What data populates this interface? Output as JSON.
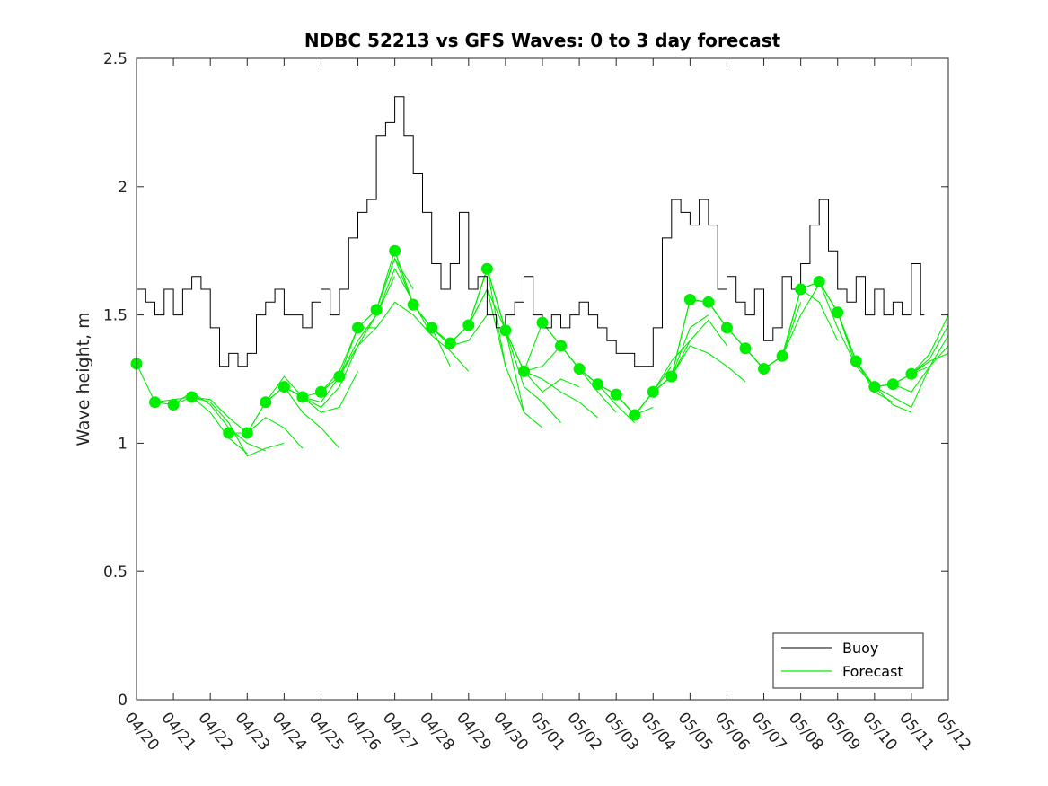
{
  "chart_data": {
    "type": "line",
    "title": "NDBC 52213 vs GFS Waves: 0 to 3 day forecast",
    "xlabel": "",
    "ylabel": "Wave height, m",
    "x_ticks": [
      "04/20",
      "04/21",
      "04/22",
      "04/23",
      "04/24",
      "04/25",
      "04/26",
      "04/27",
      "04/28",
      "04/29",
      "04/30",
      "05/01",
      "05/02",
      "05/03",
      "05/04",
      "05/05",
      "05/06",
      "05/07",
      "05/08",
      "05/09",
      "05/10",
      "05/11",
      "05/12"
    ],
    "xlim_days": [
      0,
      22
    ],
    "ylim": [
      0,
      2.5
    ],
    "y_ticks": [
      0,
      0.5,
      1,
      1.5,
      2,
      2.5
    ],
    "grid": false,
    "legend": {
      "placement": "bottom-right",
      "entries": [
        "Buoy",
        "Forecast"
      ]
    },
    "colors": {
      "buoy": "#000000",
      "forecast": "#00ee00"
    },
    "buoy": {
      "name": "Buoy",
      "x_days": [
        0,
        0.25,
        0.5,
        0.75,
        1,
        1.25,
        1.5,
        1.75,
        2,
        2.25,
        2.5,
        2.75,
        3,
        3.25,
        3.5,
        3.75,
        4,
        4.25,
        4.5,
        4.75,
        5,
        5.25,
        5.5,
        5.75,
        6,
        6.25,
        6.5,
        6.75,
        7,
        7.25,
        7.5,
        7.75,
        8,
        8.25,
        8.5,
        8.75,
        9,
        9.25,
        9.5,
        9.75,
        10,
        10.25,
        10.5,
        10.75,
        11,
        11.25,
        11.5,
        11.75,
        12,
        12.25,
        12.5,
        12.75,
        13,
        13.25,
        13.5,
        13.75,
        14,
        14.25,
        14.5,
        14.75,
        15,
        15.25,
        15.5,
        15.75,
        16,
        16.25,
        16.5,
        16.75,
        17,
        17.25,
        17.5,
        17.75,
        18,
        18.25,
        18.5,
        18.75,
        19,
        19.25,
        19.5,
        19.75,
        20,
        20.25,
        20.5,
        20.75,
        21,
        21.25
      ],
      "values": [
        1.6,
        1.55,
        1.5,
        1.6,
        1.5,
        1.6,
        1.65,
        1.6,
        1.45,
        1.3,
        1.35,
        1.3,
        1.35,
        1.5,
        1.55,
        1.6,
        1.5,
        1.5,
        1.45,
        1.55,
        1.6,
        1.5,
        1.6,
        1.8,
        1.9,
        1.95,
        2.2,
        2.25,
        2.35,
        2.2,
        2.05,
        1.9,
        1.7,
        1.6,
        1.7,
        1.9,
        1.6,
        1.65,
        1.5,
        1.45,
        1.5,
        1.55,
        1.65,
        1.5,
        1.45,
        1.5,
        1.45,
        1.5,
        1.55,
        1.5,
        1.45,
        1.4,
        1.35,
        1.35,
        1.3,
        1.3,
        1.45,
        1.8,
        1.95,
        1.9,
        1.85,
        1.95,
        1.85,
        1.6,
        1.65,
        1.55,
        1.5,
        1.6,
        1.4,
        1.45,
        1.65,
        1.6,
        1.7,
        1.85,
        1.95,
        1.75,
        1.6,
        1.55,
        1.65,
        1.5,
        1.6,
        1.5,
        1.55,
        1.5,
        1.7,
        1.5
      ]
    },
    "forecast_markers": {
      "name": "Forecast",
      "x_days": [
        0,
        0.5,
        1,
        1.5,
        2.5,
        3,
        3.5,
        4,
        4.5,
        5,
        5.5,
        6,
        6.5,
        7,
        7.5,
        8,
        8.5,
        9,
        9.5,
        10,
        10.5,
        11,
        11.5,
        12,
        12.5,
        13,
        13.5,
        14,
        14.5,
        15,
        15.5,
        16,
        16.5,
        17,
        17.5,
        18,
        18.5,
        19,
        19.5,
        20,
        20.5,
        21
      ],
      "values": [
        1.31,
        1.16,
        1.15,
        1.18,
        1.04,
        1.04,
        1.16,
        1.22,
        1.18,
        1.2,
        1.26,
        1.45,
        1.52,
        1.75,
        1.54,
        1.45,
        1.39,
        1.46,
        1.68,
        1.44,
        1.28,
        1.47,
        1.38,
        1.29,
        1.23,
        1.19,
        1.11,
        1.2,
        1.26,
        1.56,
        1.55,
        1.45,
        1.37,
        1.29,
        1.34,
        1.6,
        1.63,
        1.51,
        1.32,
        1.22,
        1.23,
        1.27
      ]
    },
    "forecast_runs": [
      {
        "x_days": [
          0,
          0.5,
          1,
          1.5,
          2,
          2.5,
          3
        ],
        "values": [
          1.31,
          1.16,
          1.17,
          1.18,
          1.12,
          1.02,
          0.96
        ]
      },
      {
        "x_days": [
          0.5,
          1,
          1.5,
          2,
          2.5,
          3,
          3.5
        ],
        "values": [
          1.16,
          1.15,
          1.2,
          1.15,
          1.06,
          1.0,
          0.97
        ]
      },
      {
        "x_days": [
          1,
          1.5,
          2,
          2.5,
          3,
          3.5,
          4
        ],
        "values": [
          1.15,
          1.18,
          1.16,
          1.08,
          0.95,
          0.98,
          1.0
        ]
      },
      {
        "x_days": [
          1.5,
          2,
          2.5,
          3,
          3.5,
          4,
          4.5
        ],
        "values": [
          1.18,
          1.17,
          1.1,
          1.04,
          1.1,
          1.06,
          0.98
        ]
      },
      {
        "x_days": [
          2.5,
          3,
          3.5,
          4,
          4.5,
          5,
          5.5
        ],
        "values": [
          1.04,
          1.04,
          1.16,
          1.22,
          1.12,
          1.06,
          0.98
        ]
      },
      {
        "x_days": [
          3,
          3.5,
          4,
          4.5,
          5,
          5.5,
          6
        ],
        "values": [
          1.04,
          1.16,
          1.26,
          1.18,
          1.12,
          1.14,
          1.28
        ]
      },
      {
        "x_days": [
          3.5,
          4,
          4.5,
          5,
          5.5,
          6,
          6.5
        ],
        "values": [
          1.16,
          1.22,
          1.18,
          1.14,
          1.22,
          1.38,
          1.45
        ]
      },
      {
        "x_days": [
          4,
          4.5,
          5,
          5.5,
          6,
          6.5,
          7
        ],
        "values": [
          1.22,
          1.18,
          1.16,
          1.26,
          1.4,
          1.5,
          1.65
        ]
      },
      {
        "x_days": [
          4.5,
          5,
          5.5,
          6,
          6.5,
          7,
          7.5
        ],
        "values": [
          1.18,
          1.2,
          1.28,
          1.45,
          1.52,
          1.72,
          1.6
        ]
      },
      {
        "x_days": [
          5,
          5.5,
          6,
          6.5,
          7,
          7.5,
          8
        ],
        "values": [
          1.2,
          1.26,
          1.38,
          1.5,
          1.68,
          1.55,
          1.42
        ]
      },
      {
        "x_days": [
          5.5,
          6,
          6.5,
          7,
          7.5,
          8,
          8.5
        ],
        "values": [
          1.26,
          1.45,
          1.52,
          1.75,
          1.54,
          1.45,
          1.3
        ]
      },
      {
        "x_days": [
          6,
          6.5,
          7,
          7.5,
          8,
          8.5,
          9
        ],
        "values": [
          1.45,
          1.45,
          1.55,
          1.5,
          1.42,
          1.36,
          1.28
        ]
      },
      {
        "x_days": [
          6.5,
          7,
          7.5,
          8,
          8.5,
          9,
          9.5
        ],
        "values": [
          1.52,
          1.72,
          1.54,
          1.45,
          1.38,
          1.4,
          1.5
        ]
      },
      {
        "x_days": [
          7,
          7.5,
          8,
          8.5,
          9,
          9.5,
          10
        ],
        "values": [
          1.75,
          1.54,
          1.45,
          1.39,
          1.46,
          1.6,
          1.3
        ]
      },
      {
        "x_days": [
          7.5,
          8,
          8.5,
          9,
          9.5,
          10,
          10.5
        ],
        "values": [
          1.54,
          1.45,
          1.39,
          1.46,
          1.68,
          1.3,
          1.12
        ]
      },
      {
        "x_days": [
          8,
          8.5,
          9,
          9.5,
          10,
          10.5,
          11
        ],
        "values": [
          1.45,
          1.39,
          1.46,
          1.68,
          1.44,
          1.12,
          1.06
        ]
      },
      {
        "x_days": [
          8.5,
          9,
          9.5,
          10,
          10.5,
          11,
          11.5
        ],
        "values": [
          1.39,
          1.46,
          1.6,
          1.44,
          1.22,
          1.16,
          1.08
        ]
      },
      {
        "x_days": [
          9,
          9.5,
          10,
          10.5,
          11,
          11.5,
          12
        ],
        "values": [
          1.46,
          1.68,
          1.44,
          1.28,
          1.2,
          1.25,
          1.22
        ]
      },
      {
        "x_days": [
          9.5,
          10,
          10.5,
          11,
          11.5,
          12,
          12.5
        ],
        "values": [
          1.68,
          1.44,
          1.28,
          1.25,
          1.2,
          1.16,
          1.1
        ]
      },
      {
        "x_days": [
          10,
          10.5,
          11,
          11.5,
          12,
          12.5,
          13
        ],
        "values": [
          1.44,
          1.28,
          1.3,
          1.38,
          1.29,
          1.2,
          1.12
        ]
      },
      {
        "x_days": [
          10.5,
          11,
          11.5,
          12,
          12.5,
          13,
          13.5
        ],
        "values": [
          1.28,
          1.47,
          1.38,
          1.29,
          1.23,
          1.15,
          1.08
        ]
      },
      {
        "x_days": [
          11,
          11.5,
          12,
          12.5,
          13,
          13.5,
          14
        ],
        "values": [
          1.47,
          1.38,
          1.29,
          1.23,
          1.19,
          1.11,
          1.14
        ]
      },
      {
        "x_days": [
          11.5,
          12,
          12.5,
          13,
          13.5,
          14,
          14.5
        ],
        "values": [
          1.38,
          1.29,
          1.23,
          1.19,
          1.11,
          1.2,
          1.3
        ]
      },
      {
        "x_days": [
          12,
          12.5,
          13,
          13.5,
          14,
          14.5,
          15
        ],
        "values": [
          1.29,
          1.23,
          1.19,
          1.11,
          1.2,
          1.32,
          1.4
        ]
      },
      {
        "x_days": [
          12.5,
          13,
          13.5,
          14,
          14.5,
          15,
          15.5
        ],
        "values": [
          1.23,
          1.19,
          1.11,
          1.2,
          1.26,
          1.45,
          1.5
        ]
      },
      {
        "x_days": [
          13,
          13.5,
          14,
          14.5,
          15,
          15.5,
          16
        ],
        "values": [
          1.19,
          1.11,
          1.2,
          1.26,
          1.4,
          1.48,
          1.38
        ]
      },
      {
        "x_days": [
          13.5,
          14,
          14.5,
          15,
          15.5,
          16,
          16.5
        ],
        "values": [
          1.11,
          1.2,
          1.26,
          1.38,
          1.35,
          1.3,
          1.24
        ]
      },
      {
        "x_days": [
          14,
          14.5,
          15,
          15.5,
          16,
          16.5,
          17
        ],
        "values": [
          1.2,
          1.26,
          1.56,
          1.55,
          1.45,
          1.37,
          1.29
        ]
      },
      {
        "x_days": [
          14.5,
          15,
          15.5,
          16,
          16.5,
          17,
          17.5
        ],
        "values": [
          1.26,
          1.56,
          1.55,
          1.45,
          1.37,
          1.29,
          1.34
        ]
      },
      {
        "x_days": [
          15,
          15.5,
          16,
          16.5,
          17,
          17.5,
          18
        ],
        "values": [
          1.56,
          1.55,
          1.45,
          1.37,
          1.29,
          1.34,
          1.55
        ]
      },
      {
        "x_days": [
          15.5,
          16,
          16.5,
          17,
          17.5,
          18,
          18.5
        ],
        "values": [
          1.55,
          1.45,
          1.37,
          1.29,
          1.34,
          1.5,
          1.62
        ]
      },
      {
        "x_days": [
          16,
          16.5,
          17,
          17.5,
          18,
          18.5,
          19
        ],
        "values": [
          1.45,
          1.37,
          1.29,
          1.34,
          1.6,
          1.55,
          1.4
        ]
      },
      {
        "x_days": [
          16.5,
          17,
          17.5,
          18,
          18.5,
          19,
          19.5
        ],
        "values": [
          1.37,
          1.29,
          1.34,
          1.6,
          1.63,
          1.45,
          1.3
        ]
      },
      {
        "x_days": [
          17,
          17.5,
          18,
          18.5,
          19,
          19.5,
          20
        ],
        "values": [
          1.29,
          1.34,
          1.6,
          1.63,
          1.51,
          1.3,
          1.22
        ]
      },
      {
        "x_days": [
          17.5,
          18,
          18.5,
          19,
          19.5,
          20,
          20.5
        ],
        "values": [
          1.34,
          1.6,
          1.63,
          1.51,
          1.32,
          1.2,
          1.16
        ]
      },
      {
        "x_days": [
          18,
          18.5,
          19,
          19.5,
          20,
          20.5,
          21
        ],
        "values": [
          1.6,
          1.63,
          1.51,
          1.32,
          1.22,
          1.15,
          1.12
        ]
      },
      {
        "x_days": [
          18.5,
          19,
          19.5,
          20,
          20.5,
          21,
          21.5
        ],
        "values": [
          1.63,
          1.51,
          1.32,
          1.22,
          1.18,
          1.14,
          1.3
        ]
      },
      {
        "x_days": [
          19,
          19.5,
          20,
          20.5,
          21,
          21.5,
          22
        ],
        "values": [
          1.51,
          1.32,
          1.22,
          1.23,
          1.2,
          1.3,
          1.42
        ]
      },
      {
        "x_days": [
          19.5,
          20,
          20.5,
          21,
          21.5,
          22
        ],
        "values": [
          1.32,
          1.22,
          1.23,
          1.27,
          1.35,
          1.5
        ]
      },
      {
        "x_days": [
          20,
          20.5,
          21,
          21.5,
          22
        ],
        "values": [
          1.22,
          1.23,
          1.27,
          1.33,
          1.46
        ]
      },
      {
        "x_days": [
          20.5,
          21,
          21.5,
          22
        ],
        "values": [
          1.23,
          1.27,
          1.3,
          1.38
        ]
      },
      {
        "x_days": [
          21,
          21.5,
          22
        ],
        "values": [
          1.27,
          1.32,
          1.35
        ]
      }
    ]
  }
}
